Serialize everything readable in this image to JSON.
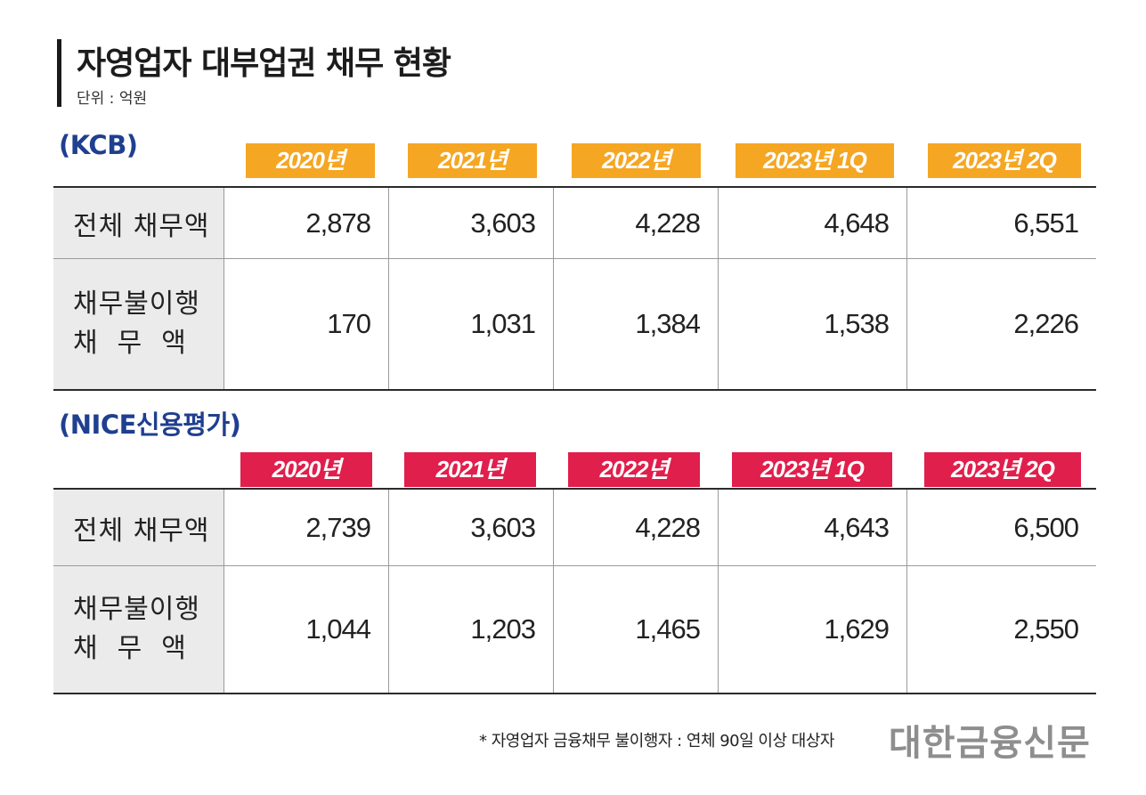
{
  "title": "자영업자 대부업권 채무 현황",
  "unit": "단위 : 억원",
  "colors": {
    "kcb_accent": "#f5a623",
    "nice_accent": "#e01f4c",
    "section_title": "#1f3f8f"
  },
  "chart_data": [
    {
      "type": "table",
      "title": "(KCB)",
      "columns": [
        "2020년",
        "2021년",
        "2022년",
        "2023년 1Q",
        "2023년 2Q"
      ],
      "rows": [
        {
          "label": "전체 채무액",
          "values": [
            "2,878",
            "3,603",
            "4,228",
            "4,648",
            "6,551"
          ]
        },
        {
          "label_line1": "채무불이행",
          "label_line2": "채무액",
          "values": [
            "170",
            "1,031",
            "1,384",
            "1,538",
            "2,226"
          ]
        }
      ]
    },
    {
      "type": "table",
      "title": "(NICE신용평가)",
      "columns": [
        "2020년",
        "2021년",
        "2022년",
        "2023년 1Q",
        "2023년 2Q"
      ],
      "rows": [
        {
          "label": "전체 채무액",
          "values": [
            "2,739",
            "3,603",
            "4,228",
            "4,643",
            "6,500"
          ]
        },
        {
          "label_line1": "채무불이행",
          "label_line2": "채무액",
          "values": [
            "1,044",
            "1,203",
            "1,465",
            "1,629",
            "2,550"
          ]
        }
      ]
    }
  ],
  "footnote": "* 자영업자 금융채무 불이행자 : 연체 90일 이상 대상자",
  "brand": "대한금융신문"
}
